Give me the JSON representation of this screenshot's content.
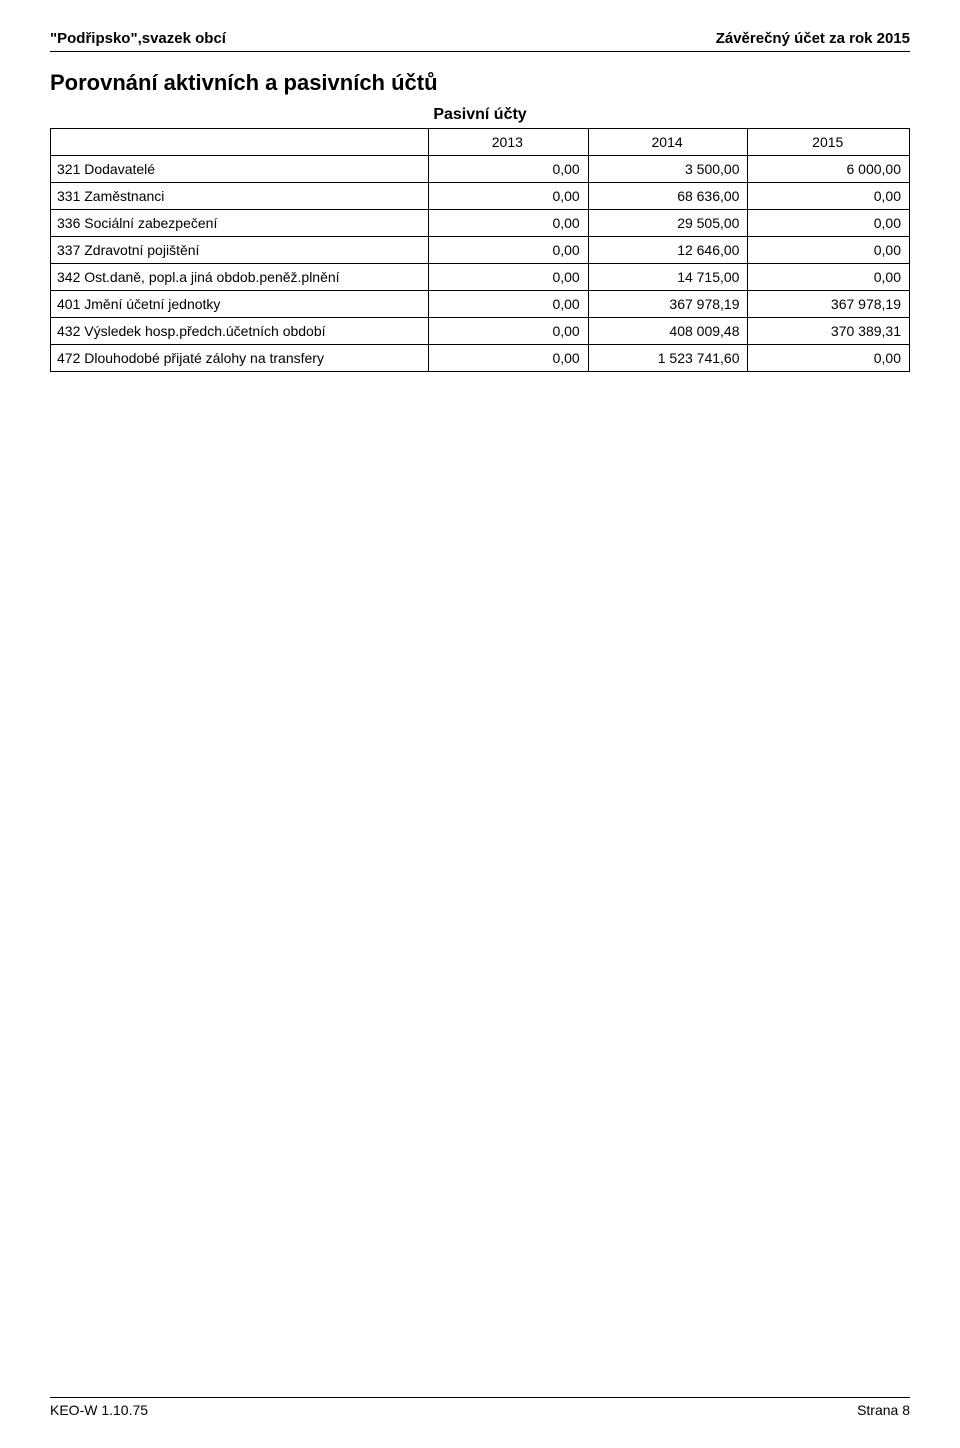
{
  "header": {
    "left": "\"Podřipsko\",svazek obcí",
    "right": "Závěrečný účet za rok 2015"
  },
  "section_title": "Porovnání aktivních a pasivních účtů",
  "subtitle": "Pasivní účty",
  "table": {
    "headers": [
      "2013",
      "2014",
      "2015"
    ],
    "rows": [
      {
        "label": "321 Dodavatelé",
        "c1": "0,00",
        "c2": "3 500,00",
        "c3": "6 000,00"
      },
      {
        "label": "331 Zaměstnanci",
        "c1": "0,00",
        "c2": "68 636,00",
        "c3": "0,00"
      },
      {
        "label": "336 Sociální zabezpečení",
        "c1": "0,00",
        "c2": "29 505,00",
        "c3": "0,00"
      },
      {
        "label": "337 Zdravotní pojištění",
        "c1": "0,00",
        "c2": "12 646,00",
        "c3": "0,00"
      },
      {
        "label": "342 Ost.daně, popl.a jiná obdob.peněž.plnění",
        "c1": "0,00",
        "c2": "14 715,00",
        "c3": "0,00"
      },
      {
        "label": "401 Jmění účetní jednotky",
        "c1": "0,00",
        "c2": "367 978,19",
        "c3": "367 978,19"
      },
      {
        "label": "432 Výsledek hosp.předch.účetních období",
        "c1": "0,00",
        "c2": "408 009,48",
        "c3": "370 389,31"
      },
      {
        "label": "472 Dlouhodobé přijaté zálohy na transfery",
        "c1": "0,00",
        "c2": "1 523 741,60",
        "c3": "0,00"
      }
    ]
  },
  "footer": {
    "left": "KEO-W 1.10.75",
    "right": "Strana 8"
  }
}
